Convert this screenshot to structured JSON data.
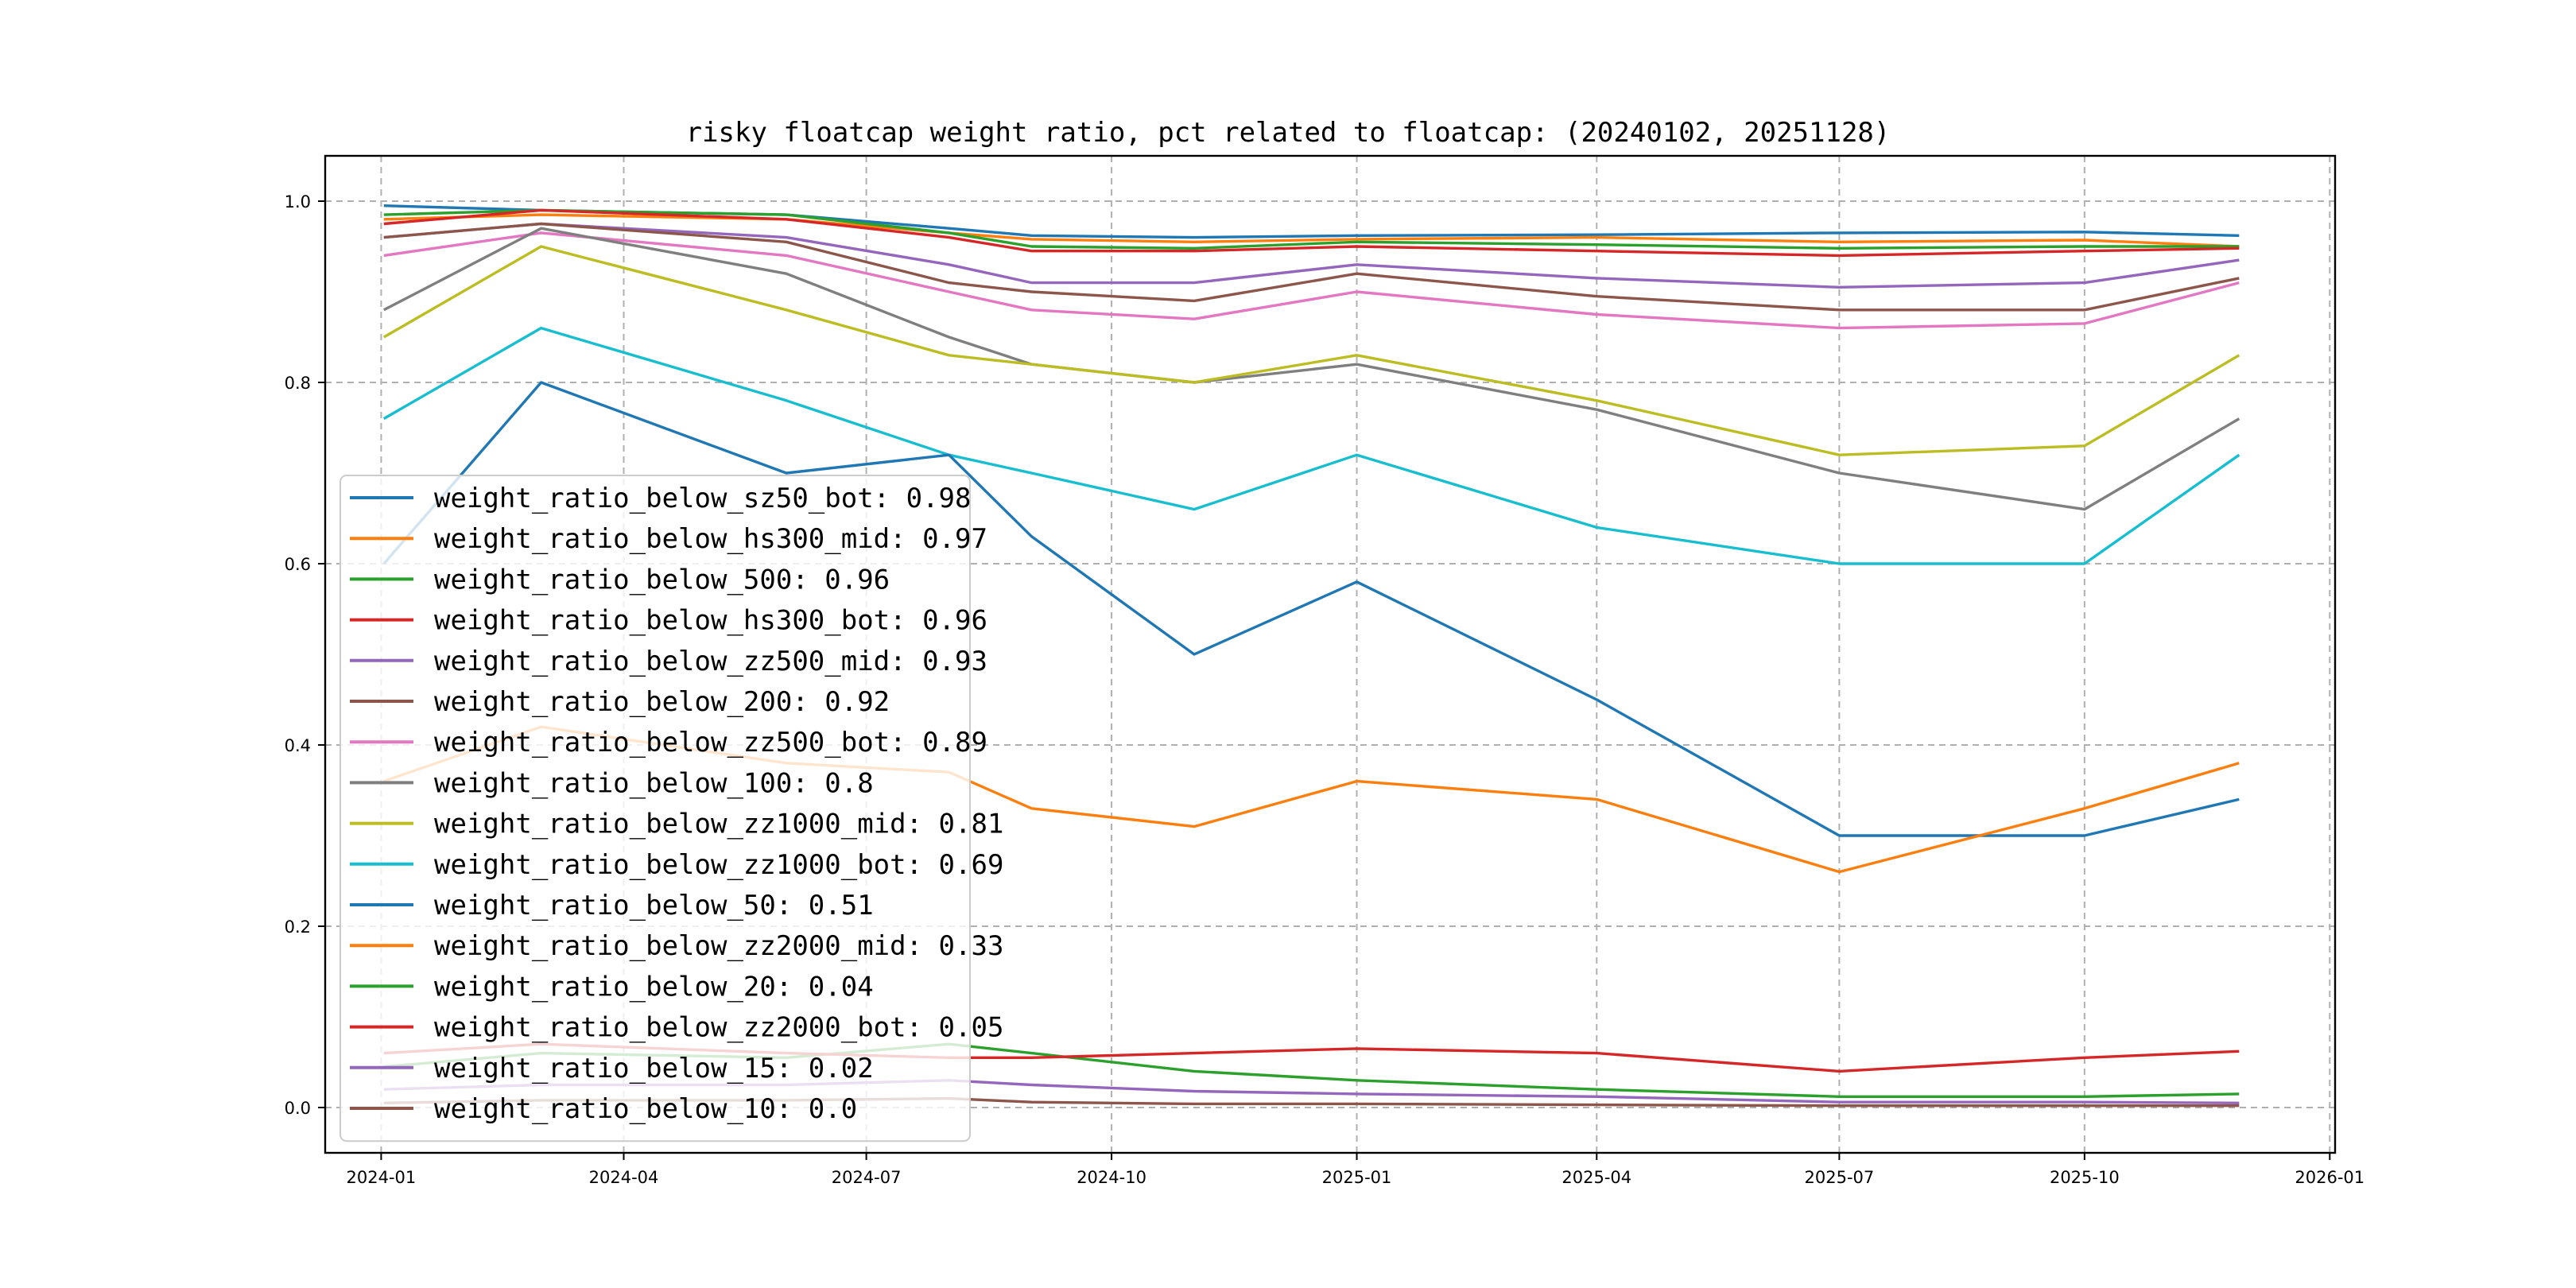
{
  "chart_data": {
    "type": "line",
    "title": "risky floatcap weight ratio, pct related to floatcap: (20240102, 20251128)",
    "xlabel": "",
    "ylabel": "",
    "xlim": [
      "2023-12-11",
      "2026-01-03"
    ],
    "ylim": [
      -0.05,
      1.05
    ],
    "x_ticks": [
      "2024-01",
      "2024-04",
      "2024-07",
      "2024-10",
      "2025-01",
      "2025-04",
      "2025-07",
      "2025-10",
      "2026-01"
    ],
    "y_ticks": [
      "0.0",
      "0.2",
      "0.4",
      "0.6",
      "0.8",
      "1.0"
    ],
    "grid": true,
    "legend_position": "lower-left",
    "series": [
      {
        "name": "weight_ratio_below_sz50_bot: 0.98",
        "color": "#1f77b4",
        "points": [
          [
            "2024-01-02",
            0.995
          ],
          [
            "2024-03-01",
            0.99
          ],
          [
            "2024-06-01",
            0.985
          ],
          [
            "2024-08-01",
            0.97
          ],
          [
            "2024-09-01",
            0.962
          ],
          [
            "2024-11-01",
            0.96
          ],
          [
            "2025-01-01",
            0.962
          ],
          [
            "2025-04-01",
            0.963
          ],
          [
            "2025-07-01",
            0.965
          ],
          [
            "2025-10-01",
            0.966
          ],
          [
            "2025-11-28",
            0.962
          ]
        ]
      },
      {
        "name": "weight_ratio_below_hs300_mid: 0.97",
        "color": "#ff7f0e",
        "points": [
          [
            "2024-01-02",
            0.98
          ],
          [
            "2024-03-01",
            0.985
          ],
          [
            "2024-06-01",
            0.98
          ],
          [
            "2024-08-01",
            0.965
          ],
          [
            "2024-09-01",
            0.958
          ],
          [
            "2024-11-01",
            0.955
          ],
          [
            "2025-01-01",
            0.958
          ],
          [
            "2025-04-01",
            0.96
          ],
          [
            "2025-07-01",
            0.955
          ],
          [
            "2025-10-01",
            0.957
          ],
          [
            "2025-11-28",
            0.95
          ]
        ]
      },
      {
        "name": "weight_ratio_below_500: 0.96",
        "color": "#2ca02c",
        "points": [
          [
            "2024-01-02",
            0.985
          ],
          [
            "2024-03-01",
            0.99
          ],
          [
            "2024-06-01",
            0.985
          ],
          [
            "2024-08-01",
            0.965
          ],
          [
            "2024-09-01",
            0.95
          ],
          [
            "2024-11-01",
            0.948
          ],
          [
            "2025-01-01",
            0.955
          ],
          [
            "2025-04-01",
            0.952
          ],
          [
            "2025-07-01",
            0.948
          ],
          [
            "2025-10-01",
            0.95
          ],
          [
            "2025-11-28",
            0.95
          ]
        ]
      },
      {
        "name": "weight_ratio_below_hs300_bot: 0.96",
        "color": "#d62728",
        "points": [
          [
            "2024-01-02",
            0.975
          ],
          [
            "2024-03-01",
            0.99
          ],
          [
            "2024-06-01",
            0.98
          ],
          [
            "2024-08-01",
            0.96
          ],
          [
            "2024-09-01",
            0.945
          ],
          [
            "2024-11-01",
            0.945
          ],
          [
            "2025-01-01",
            0.95
          ],
          [
            "2025-04-01",
            0.945
          ],
          [
            "2025-07-01",
            0.94
          ],
          [
            "2025-10-01",
            0.945
          ],
          [
            "2025-11-28",
            0.948
          ]
        ]
      },
      {
        "name": "weight_ratio_below_zz500_mid: 0.93",
        "color": "#9467bd",
        "points": [
          [
            "2024-01-02",
            0.96
          ],
          [
            "2024-03-01",
            0.975
          ],
          [
            "2024-06-01",
            0.96
          ],
          [
            "2024-08-01",
            0.93
          ],
          [
            "2024-09-01",
            0.91
          ],
          [
            "2024-11-01",
            0.91
          ],
          [
            "2025-01-01",
            0.93
          ],
          [
            "2025-04-01",
            0.915
          ],
          [
            "2025-07-01",
            0.905
          ],
          [
            "2025-10-01",
            0.91
          ],
          [
            "2025-11-28",
            0.935
          ]
        ]
      },
      {
        "name": "weight_ratio_below_200: 0.92",
        "color": "#8c564b",
        "points": [
          [
            "2024-01-02",
            0.96
          ],
          [
            "2024-03-01",
            0.975
          ],
          [
            "2024-06-01",
            0.955
          ],
          [
            "2024-08-01",
            0.91
          ],
          [
            "2024-09-01",
            0.9
          ],
          [
            "2024-11-01",
            0.89
          ],
          [
            "2025-01-01",
            0.92
          ],
          [
            "2025-04-01",
            0.895
          ],
          [
            "2025-07-01",
            0.88
          ],
          [
            "2025-10-01",
            0.88
          ],
          [
            "2025-11-28",
            0.915
          ]
        ]
      },
      {
        "name": "weight_ratio_below_zz500_bot: 0.89",
        "color": "#e377c2",
        "points": [
          [
            "2024-01-02",
            0.94
          ],
          [
            "2024-03-01",
            0.965
          ],
          [
            "2024-06-01",
            0.94
          ],
          [
            "2024-08-01",
            0.9
          ],
          [
            "2024-09-01",
            0.88
          ],
          [
            "2024-11-01",
            0.87
          ],
          [
            "2025-01-01",
            0.9
          ],
          [
            "2025-04-01",
            0.875
          ],
          [
            "2025-07-01",
            0.86
          ],
          [
            "2025-10-01",
            0.865
          ],
          [
            "2025-11-28",
            0.91
          ]
        ]
      },
      {
        "name": "weight_ratio_below_100: 0.8",
        "color": "#7f7f7f",
        "points": [
          [
            "2024-01-02",
            0.88
          ],
          [
            "2024-03-01",
            0.97
          ],
          [
            "2024-06-01",
            0.92
          ],
          [
            "2024-08-01",
            0.85
          ],
          [
            "2024-09-01",
            0.82
          ],
          [
            "2024-11-01",
            0.8
          ],
          [
            "2025-01-01",
            0.82
          ],
          [
            "2025-04-01",
            0.77
          ],
          [
            "2025-07-01",
            0.7
          ],
          [
            "2025-10-01",
            0.66
          ],
          [
            "2025-11-28",
            0.76
          ]
        ]
      },
      {
        "name": "weight_ratio_below_zz1000_mid: 0.81",
        "color": "#bcbd22",
        "points": [
          [
            "2024-01-02",
            0.85
          ],
          [
            "2024-03-01",
            0.95
          ],
          [
            "2024-06-01",
            0.88
          ],
          [
            "2024-08-01",
            0.83
          ],
          [
            "2024-09-01",
            0.82
          ],
          [
            "2024-11-01",
            0.8
          ],
          [
            "2025-01-01",
            0.83
          ],
          [
            "2025-04-01",
            0.78
          ],
          [
            "2025-07-01",
            0.72
          ],
          [
            "2025-10-01",
            0.73
          ],
          [
            "2025-11-28",
            0.83
          ]
        ]
      },
      {
        "name": "weight_ratio_below_zz1000_bot: 0.69",
        "color": "#17becf",
        "points": [
          [
            "2024-01-02",
            0.76
          ],
          [
            "2024-03-01",
            0.86
          ],
          [
            "2024-06-01",
            0.78
          ],
          [
            "2024-08-01",
            0.72
          ],
          [
            "2024-09-01",
            0.7
          ],
          [
            "2024-11-01",
            0.66
          ],
          [
            "2025-01-01",
            0.72
          ],
          [
            "2025-04-01",
            0.64
          ],
          [
            "2025-07-01",
            0.6
          ],
          [
            "2025-10-01",
            0.6
          ],
          [
            "2025-11-28",
            0.72
          ]
        ]
      },
      {
        "name": "weight_ratio_below_50: 0.51",
        "color": "#1f77b4",
        "points": [
          [
            "2024-01-02",
            0.6
          ],
          [
            "2024-03-01",
            0.8
          ],
          [
            "2024-06-01",
            0.7
          ],
          [
            "2024-08-01",
            0.72
          ],
          [
            "2024-09-01",
            0.63
          ],
          [
            "2024-11-01",
            0.5
          ],
          [
            "2025-01-01",
            0.58
          ],
          [
            "2025-04-01",
            0.45
          ],
          [
            "2025-07-01",
            0.3
          ],
          [
            "2025-10-01",
            0.3
          ],
          [
            "2025-11-28",
            0.34
          ]
        ]
      },
      {
        "name": "weight_ratio_below_zz2000_mid: 0.33",
        "color": "#ff7f0e",
        "points": [
          [
            "2024-01-02",
            0.36
          ],
          [
            "2024-03-01",
            0.42
          ],
          [
            "2024-06-01",
            0.38
          ],
          [
            "2024-08-01",
            0.37
          ],
          [
            "2024-09-01",
            0.33
          ],
          [
            "2024-11-01",
            0.31
          ],
          [
            "2025-01-01",
            0.36
          ],
          [
            "2025-04-01",
            0.34
          ],
          [
            "2025-07-01",
            0.26
          ],
          [
            "2025-10-01",
            0.33
          ],
          [
            "2025-11-28",
            0.38
          ]
        ]
      },
      {
        "name": "weight_ratio_below_20: 0.04",
        "color": "#2ca02c",
        "points": [
          [
            "2024-01-02",
            0.045
          ],
          [
            "2024-03-01",
            0.06
          ],
          [
            "2024-06-01",
            0.055
          ],
          [
            "2024-08-01",
            0.07
          ],
          [
            "2024-09-01",
            0.06
          ],
          [
            "2024-11-01",
            0.04
          ],
          [
            "2025-01-01",
            0.03
          ],
          [
            "2025-04-01",
            0.02
          ],
          [
            "2025-07-01",
            0.012
          ],
          [
            "2025-10-01",
            0.012
          ],
          [
            "2025-11-28",
            0.015
          ]
        ]
      },
      {
        "name": "weight_ratio_below_zz2000_bot: 0.05",
        "color": "#d62728",
        "points": [
          [
            "2024-01-02",
            0.06
          ],
          [
            "2024-03-01",
            0.07
          ],
          [
            "2024-06-01",
            0.06
          ],
          [
            "2024-08-01",
            0.055
          ],
          [
            "2024-09-01",
            0.055
          ],
          [
            "2024-11-01",
            0.06
          ],
          [
            "2025-01-01",
            0.065
          ],
          [
            "2025-04-01",
            0.06
          ],
          [
            "2025-07-01",
            0.04
          ],
          [
            "2025-10-01",
            0.055
          ],
          [
            "2025-11-28",
            0.062
          ]
        ]
      },
      {
        "name": "weight_ratio_below_15: 0.02",
        "color": "#9467bd",
        "points": [
          [
            "2024-01-02",
            0.02
          ],
          [
            "2024-03-01",
            0.025
          ],
          [
            "2024-06-01",
            0.025
          ],
          [
            "2024-08-01",
            0.03
          ],
          [
            "2024-09-01",
            0.025
          ],
          [
            "2024-11-01",
            0.018
          ],
          [
            "2025-01-01",
            0.015
          ],
          [
            "2025-04-01",
            0.012
          ],
          [
            "2025-07-01",
            0.006
          ],
          [
            "2025-10-01",
            0.006
          ],
          [
            "2025-11-28",
            0.005
          ]
        ]
      },
      {
        "name": "weight_ratio_below_10: 0.0",
        "color": "#8c564b",
        "points": [
          [
            "2024-01-02",
            0.005
          ],
          [
            "2024-03-01",
            0.008
          ],
          [
            "2024-06-01",
            0.008
          ],
          [
            "2024-08-01",
            0.01
          ],
          [
            "2024-09-01",
            0.006
          ],
          [
            "2024-11-01",
            0.004
          ],
          [
            "2025-01-01",
            0.004
          ],
          [
            "2025-04-01",
            0.003
          ],
          [
            "2025-07-01",
            0.002
          ],
          [
            "2025-10-01",
            0.002
          ],
          [
            "2025-11-28",
            0.002
          ]
        ]
      }
    ]
  }
}
